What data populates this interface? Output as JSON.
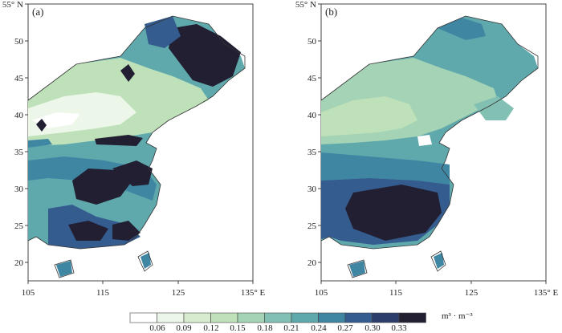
{
  "panels": [
    {
      "id": "a",
      "label": "(a)",
      "x_ticks": [
        "105",
        "115",
        "125",
        "135° E"
      ],
      "y_ticks": [
        "55° N",
        "50",
        "45",
        "40",
        "35",
        "30",
        "25",
        "20"
      ]
    },
    {
      "id": "b",
      "label": "(b)",
      "x_ticks": [
        "105",
        "115",
        "125",
        "135° E"
      ],
      "y_ticks": [
        "55° N",
        "50",
        "45",
        "40",
        "35",
        "30",
        "25",
        "20"
      ]
    }
  ],
  "colorbar": {
    "tick_labels": [
      "0.06",
      "0.09",
      "0.12",
      "0.15",
      "0.18",
      "0.21",
      "0.24",
      "0.27",
      "0.30",
      "0.33"
    ],
    "unit_label": "m³ · m⁻³",
    "colors": [
      "#ffffff",
      "#edf7e9",
      "#d7ecce",
      "#bfe1b9",
      "#a5d3b5",
      "#83c0b4",
      "#5fa9ad",
      "#3f86a3",
      "#345c8f",
      "#2c3d6c",
      "#221f32"
    ]
  }
}
